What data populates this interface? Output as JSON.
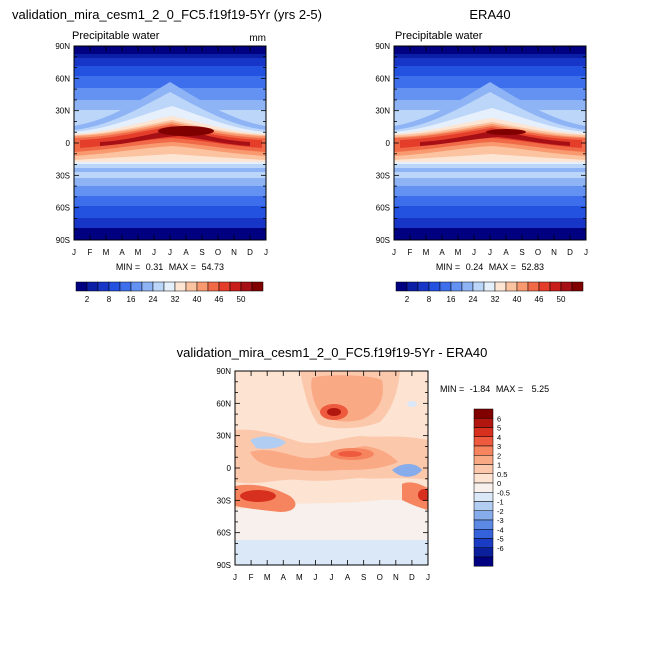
{
  "chart_data": [
    {
      "type": "heatmap",
      "id": "model",
      "title": "validation_mira_cesm1_2_0_FC5.f19f19-5Yr (yrs 2-5)",
      "subtitle_left": "Precipitable water",
      "units": "mm",
      "x_ticks": [
        "J",
        "F",
        "M",
        "A",
        "M",
        "J",
        "J",
        "A",
        "S",
        "O",
        "N",
        "D",
        "J"
      ],
      "y_ticks": [
        "90N",
        "60N",
        "30N",
        "0",
        "30S",
        "60S",
        "90S"
      ],
      "ylim": [
        -90,
        90
      ],
      "stats": {
        "min_label": "MIN =",
        "min": "0.31",
        "max_label": "MAX =",
        "max": "54.73"
      },
      "colorbar_labels": [
        "2",
        "8",
        "16",
        "24",
        "32",
        "40",
        "46",
        "50"
      ],
      "colorbar_levels": [
        2,
        4,
        6,
        8,
        12,
        16,
        20,
        24,
        28,
        32,
        36,
        40,
        44,
        46,
        48,
        50
      ],
      "colorbar_colors": [
        "#000080",
        "#0b1ea6",
        "#1736c8",
        "#2351e0",
        "#3d6fec",
        "#6492f2",
        "#8fb4f6",
        "#bcd6fa",
        "#e6effc",
        "#fde5d3",
        "#fcc3a1",
        "#f9996f",
        "#f16a48",
        "#e43e2b",
        "#c81d1b",
        "#a50f15",
        "#800000"
      ],
      "series": [
        {
          "name": "30N",
          "values": [
            16,
            18,
            20,
            24,
            31,
            38,
            42,
            42,
            36,
            28,
            22,
            18,
            16
          ]
        },
        {
          "name": "EQ",
          "values": [
            44,
            44,
            45,
            46,
            47,
            48,
            49,
            49,
            48,
            47,
            46,
            45,
            44
          ]
        },
        {
          "name": "30S",
          "values": [
            28,
            28,
            27,
            25,
            22,
            20,
            19,
            19,
            20,
            22,
            24,
            26,
            28
          ]
        }
      ]
    },
    {
      "type": "heatmap",
      "id": "obs",
      "title": "ERA40",
      "subtitle_left": "Precipitable water",
      "units": "",
      "x_ticks": [
        "J",
        "F",
        "M",
        "A",
        "M",
        "J",
        "J",
        "A",
        "S",
        "O",
        "N",
        "D",
        "J"
      ],
      "y_ticks": [
        "90N",
        "60N",
        "30N",
        "0",
        "30S",
        "60S",
        "90S"
      ],
      "ylim": [
        -90,
        90
      ],
      "stats": {
        "min_label": "MIN =",
        "min": "0.24",
        "max_label": "MAX =",
        "max": "52.83"
      },
      "colorbar_labels": [
        "2",
        "8",
        "16",
        "24",
        "32",
        "40",
        "46",
        "50"
      ],
      "series": [
        {
          "name": "30N",
          "values": [
            15,
            17,
            19,
            23,
            30,
            37,
            41,
            41,
            35,
            27,
            21,
            17,
            15
          ]
        },
        {
          "name": "EQ",
          "values": [
            43,
            43,
            44,
            45,
            46,
            47,
            48,
            48,
            47,
            46,
            45,
            44,
            43
          ]
        },
        {
          "name": "30S",
          "values": [
            27,
            27,
            26,
            24,
            21,
            19,
            18,
            18,
            19,
            21,
            23,
            25,
            27
          ]
        }
      ]
    },
    {
      "type": "heatmap",
      "id": "diff",
      "title": "validation_mira_cesm1_2_0_FC5.f19f19-5Yr - ERA40",
      "x_ticks": [
        "J",
        "F",
        "M",
        "A",
        "M",
        "J",
        "J",
        "A",
        "S",
        "O",
        "N",
        "D",
        "J"
      ],
      "y_ticks": [
        "90N",
        "60N",
        "30N",
        "0",
        "30S",
        "60S",
        "90S"
      ],
      "ylim": [
        -90,
        90
      ],
      "stats": {
        "min_label": "MIN =",
        "min": "-1.84",
        "max_label": "MAX =",
        "max": "5.25"
      },
      "colorbar_labels": [
        "6",
        "5",
        "4",
        "3",
        "2",
        "1",
        "0.5",
        "0",
        "-0.5",
        "-1",
        "-2",
        "-3",
        "-4",
        "-5",
        "-6"
      ],
      "colorbar_colors": [
        "#800000",
        "#b2170f",
        "#d8301e",
        "#ee5a3d",
        "#f6845f",
        "#faa985",
        "#fcc8ac",
        "#fde3d2",
        "#f7f0ec",
        "#dbe8f8",
        "#b2cdf2",
        "#86acec",
        "#5b89e4",
        "#3462da",
        "#1a3cc4",
        "#0b1f9c",
        "#000080"
      ],
      "series": [
        {
          "name": "60N",
          "values": [
            0.5,
            0.5,
            1,
            1,
            1.5,
            2,
            4,
            3,
            1,
            1,
            0.5,
            0.5,
            0.5
          ]
        },
        {
          "name": "EQ",
          "values": [
            1,
            1,
            2,
            1,
            2,
            2,
            3,
            3,
            1,
            0.5,
            -1,
            -0.5,
            1
          ]
        },
        {
          "name": "30S",
          "values": [
            2,
            2,
            3,
            1,
            1,
            0.5,
            0.5,
            0.5,
            0.5,
            1,
            1,
            2,
            2
          ]
        }
      ]
    }
  ]
}
